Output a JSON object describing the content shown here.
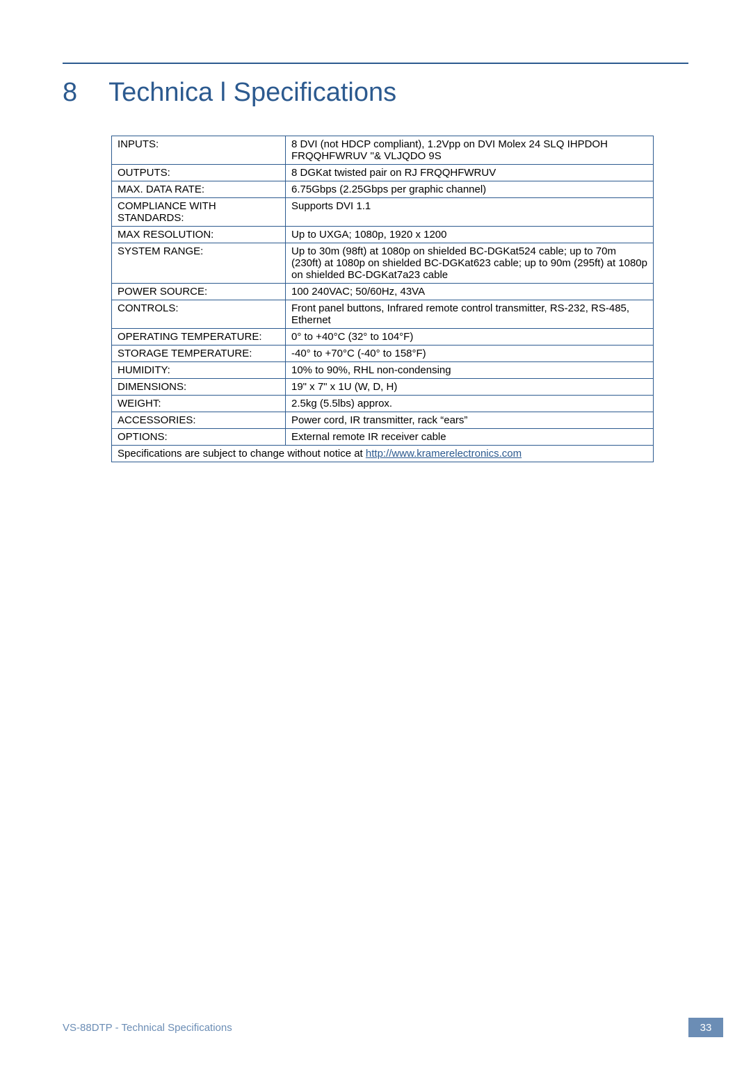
{
  "heading": {
    "number": "8",
    "title": "Technica l Specifications"
  },
  "table": {
    "rows": [
      {
        "label": "INPUTS:",
        "value": "8 DVI (not HDCP compliant), 1.2Vpp on DVI Molex 24 SLQ IHPDOH FRQQHFWRUV ''& VLJQDO 9S"
      },
      {
        "label": "OUTPUTS:",
        "value": "8 DGKat twisted pair on RJ    FRQQHFWRUV"
      },
      {
        "label": "MAX. DATA RATE:",
        "value": "6.75Gbps (2.25Gbps per graphic channel)"
      },
      {
        "label": "COMPLIANCE WITH STANDARDS:",
        "value": "Supports DVI 1.1"
      },
      {
        "label": "MAX RESOLUTION:",
        "value": "Up to UXGA; 1080p, 1920 x 1200"
      },
      {
        "label": "SYSTEM RANGE:",
        "value": "Up to 30m (98ft) at 1080p on shielded BC-DGKat524 cable;  up to 70m (230ft) at 1080p on shielded BC-DGKat623 cable; up to 90m (295ft) at 1080p on shielded BC-DGKat7a23 cable"
      },
      {
        "label": "POWER SOURCE:",
        "value": "100  240VAC; 50/60Hz, 43VA"
      },
      {
        "label": "CONTROLS:",
        "value": "Front panel buttons, Infrared remote control transmitter, RS-232, RS-485, Ethernet"
      },
      {
        "label": "OPERATING TEMPERATURE:",
        "value": "0° to +40°C (32° to 104°F)"
      },
      {
        "label": "STORAGE TEMPERATURE:",
        "value": "-40° to +70°C (-40° to 158°F)"
      },
      {
        "label": "HUMIDITY:",
        "value": "10% to 90%, RHL non-condensing"
      },
      {
        "label": "DIMENSIONS:",
        "value": "19\" x  7\" x 1U (W, D, H)"
      },
      {
        "label": "WEIGHT:",
        "value": "2.5kg (5.5lbs) approx."
      },
      {
        "label": "ACCESSORIES:",
        "value": "Power cord, IR transmitter, rack “ears”"
      },
      {
        "label": "OPTIONS:",
        "value": "External remote IR receiver cable"
      }
    ],
    "footer_text": "Specifications are subject to change without notice  at ",
    "footer_link": "http://www.kramerelectronics.com"
  },
  "footer": {
    "text": "VS-88DTP - Technical Specifications",
    "page_number": "33"
  },
  "colors": {
    "accent": "#2c5a8f",
    "footer_text": "#6b8db5",
    "page_bg": "#ffffff"
  }
}
